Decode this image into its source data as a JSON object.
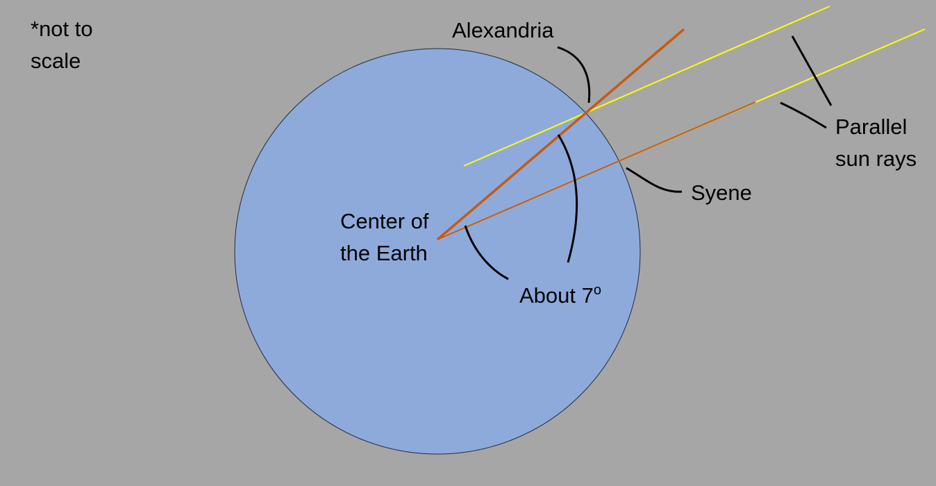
{
  "note": {
    "line1": "*not to",
    "line2": "scale"
  },
  "labels": {
    "alexandria": "Alexandria",
    "center_line1": "Center of",
    "center_line2": "the Earth",
    "syene": "Syene",
    "parallel_line1": "Parallel",
    "parallel_line2": "sun rays",
    "angle_text": "About 7",
    "angle_unit": "o"
  },
  "colors": {
    "background": "#a6a6a6",
    "earth_fill": "#8eaadb",
    "earth_stroke": "#1f2a44",
    "sun_ray": "#ffff00",
    "radius_line": "#c55a11",
    "leader_line": "#000000"
  }
}
